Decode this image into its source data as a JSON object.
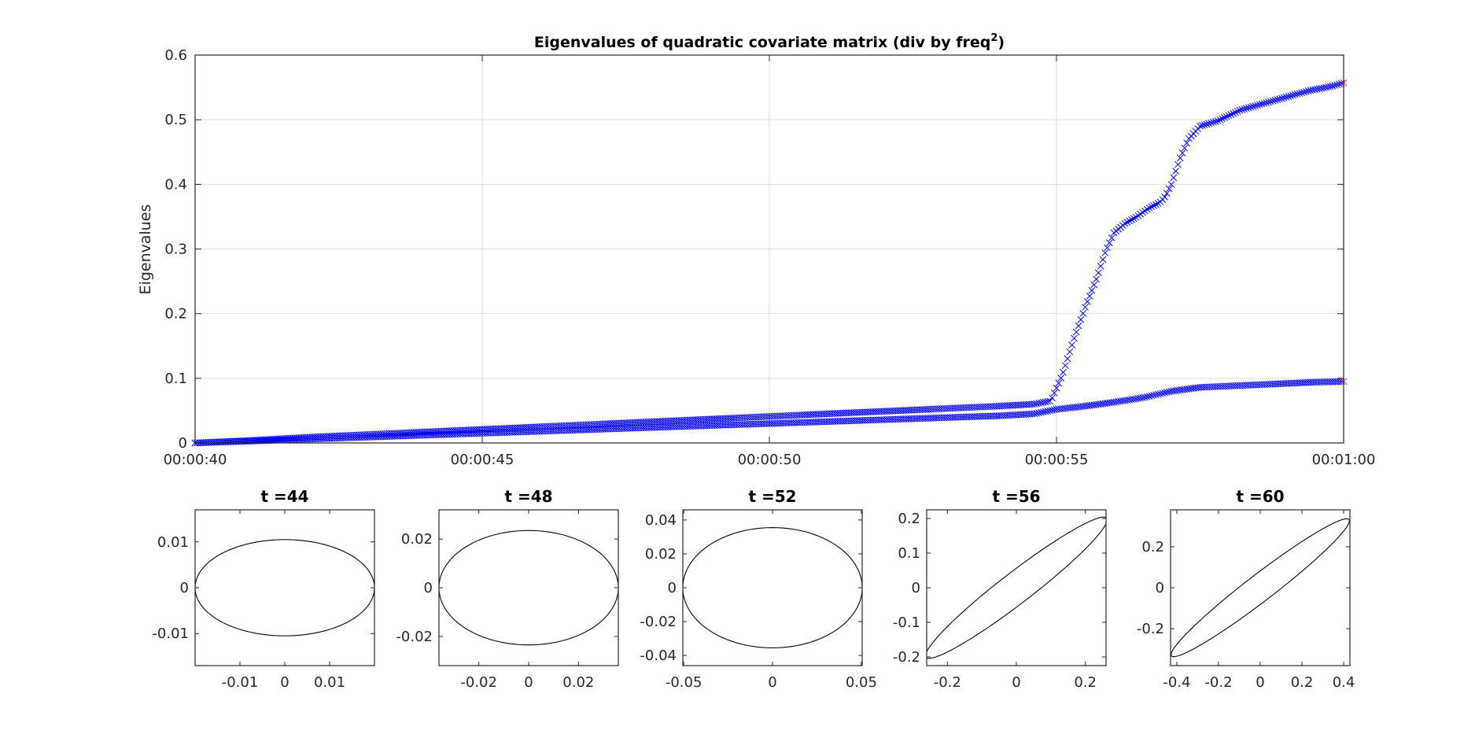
{
  "chart_data": [
    {
      "type": "scatter",
      "title": "Eigenvalues of quadratic covariate matrix (div by freq",
      "title_superscript": "2",
      "title_suffix": ")",
      "xlabel": "",
      "ylabel": "Eigenvalues",
      "x_is_time": true,
      "xlim": [
        40,
        60
      ],
      "ylim": [
        0,
        0.6
      ],
      "xticks": [
        40,
        45,
        50,
        55,
        60
      ],
      "xtick_labels": [
        "00:00:40",
        "00:00:45",
        "00:00:50",
        "00:00:55",
        "00:01:00"
      ],
      "yticks": [
        0,
        0.1,
        0.2,
        0.3,
        0.4,
        0.5,
        0.6
      ],
      "ytick_labels": [
        "0",
        "0.1",
        "0.2",
        "0.3",
        "0.4",
        "0.5",
        "0.6"
      ],
      "grid": true,
      "marker": "x",
      "series_color": "#0000ff",
      "endpoint_color": "#d01050",
      "series": [
        {
          "x": [
            40,
            41,
            42,
            43,
            44,
            45,
            46,
            47,
            48,
            49,
            50,
            51,
            52,
            53,
            54,
            54.6,
            54.9,
            55.1,
            55.3,
            55.5,
            55.7,
            55.85,
            56.0,
            56.2,
            56.4,
            56.6,
            56.8,
            56.9,
            57.0,
            57.15,
            57.3,
            57.5,
            57.8,
            58.2,
            58.6,
            59.0,
            59.4,
            59.8,
            60
          ],
          "y": [
            0.0,
            0.004,
            0.009,
            0.013,
            0.017,
            0.021,
            0.025,
            0.029,
            0.033,
            0.037,
            0.041,
            0.045,
            0.049,
            0.053,
            0.057,
            0.06,
            0.065,
            0.105,
            0.16,
            0.21,
            0.255,
            0.295,
            0.325,
            0.34,
            0.35,
            0.363,
            0.372,
            0.382,
            0.4,
            0.44,
            0.47,
            0.49,
            0.498,
            0.515,
            0.525,
            0.535,
            0.545,
            0.552,
            0.557
          ]
        },
        {
          "x": [
            40,
            41,
            42,
            43,
            44,
            45,
            46,
            47,
            48,
            49,
            50,
            51,
            52,
            53,
            54,
            54.6,
            55.0,
            55.5,
            56.0,
            56.5,
            57.0,
            57.5,
            58.0,
            58.5,
            59.0,
            59.5,
            60
          ],
          "y": [
            0.0,
            0.003,
            0.006,
            0.009,
            0.012,
            0.015,
            0.018,
            0.021,
            0.024,
            0.027,
            0.03,
            0.033,
            0.036,
            0.039,
            0.042,
            0.045,
            0.052,
            0.057,
            0.063,
            0.07,
            0.08,
            0.086,
            0.088,
            0.09,
            0.092,
            0.094,
            0.095
          ]
        }
      ]
    },
    {
      "type": "line",
      "title": "t =44",
      "xticks": [
        -0.01,
        0,
        0.01
      ],
      "xtick_labels": [
        "-0.01",
        "0",
        "0.01"
      ],
      "yticks": [
        -0.01,
        0,
        0.01
      ],
      "ytick_labels": [
        "-0.01",
        "0",
        "0.01"
      ],
      "xlim": [
        -0.02,
        0.02
      ],
      "ylim": [
        -0.017,
        0.017
      ],
      "ellipse": {
        "cx": 0,
        "cy": 0,
        "a": 0.02,
        "b": 0.0105,
        "angle_deg": 0
      },
      "color": "#000000"
    },
    {
      "type": "line",
      "title": "t =48",
      "xticks": [
        -0.02,
        0,
        0.02
      ],
      "xtick_labels": [
        "-0.02",
        "0",
        "0.02"
      ],
      "yticks": [
        -0.02,
        0,
        0.02
      ],
      "ytick_labels": [
        "-0.02",
        "0",
        "0.02"
      ],
      "xlim": [
        -0.036,
        0.036
      ],
      "ylim": [
        -0.032,
        0.032
      ],
      "ellipse": {
        "cx": 0,
        "cy": 0,
        "a": 0.036,
        "b": 0.0235,
        "angle_deg": 0
      },
      "color": "#000000"
    },
    {
      "type": "line",
      "title": "t =52",
      "xticks": [
        -0.05,
        0,
        0.05
      ],
      "xtick_labels": [
        "-0.05",
        "0",
        "0.05"
      ],
      "yticks": [
        -0.04,
        -0.02,
        0,
        0.02,
        0.04
      ],
      "ytick_labels": [
        "-0.04",
        "-0.02",
        "0",
        "0.02",
        "0.04"
      ],
      "xlim": [
        -0.0505,
        0.0505
      ],
      "ylim": [
        -0.046,
        0.046
      ],
      "ellipse": {
        "cx": 0,
        "cy": 0,
        "a": 0.0505,
        "b": 0.0355,
        "angle_deg": 0
      },
      "color": "#000000"
    },
    {
      "type": "line",
      "title": "t =56",
      "xticks": [
        -0.2,
        0,
        0.2
      ],
      "xtick_labels": [
        "-0.2",
        "0",
        "0.2"
      ],
      "yticks": [
        -0.2,
        -0.1,
        0,
        0.1,
        0.2
      ],
      "ytick_labels": [
        "-0.2",
        "-0.1",
        "0",
        "0.1",
        "0.2"
      ],
      "xlim": [
        -0.26,
        0.26
      ],
      "ylim": [
        -0.225,
        0.225
      ],
      "ellipse": {
        "cx": 0,
        "cy": 0,
        "a": 0.33,
        "b": 0.045,
        "angle_deg": 37.5
      },
      "color": "#000000"
    },
    {
      "type": "line",
      "title": "t =60",
      "xticks": [
        -0.4,
        -0.2,
        0,
        0.2,
        0.4
      ],
      "xtick_labels": [
        "-0.4",
        "-0.2",
        "0",
        "0.2",
        "0.4"
      ],
      "yticks": [
        -0.2,
        0,
        0.2
      ],
      "ytick_labels": [
        "-0.2",
        "0",
        "0.2"
      ],
      "xlim": [
        -0.43,
        0.43
      ],
      "ylim": [
        -0.38,
        0.38
      ],
      "ellipse": {
        "cx": 0,
        "cy": 0,
        "a": 0.54,
        "b": 0.065,
        "angle_deg": 38
      },
      "color": "#000000"
    }
  ]
}
